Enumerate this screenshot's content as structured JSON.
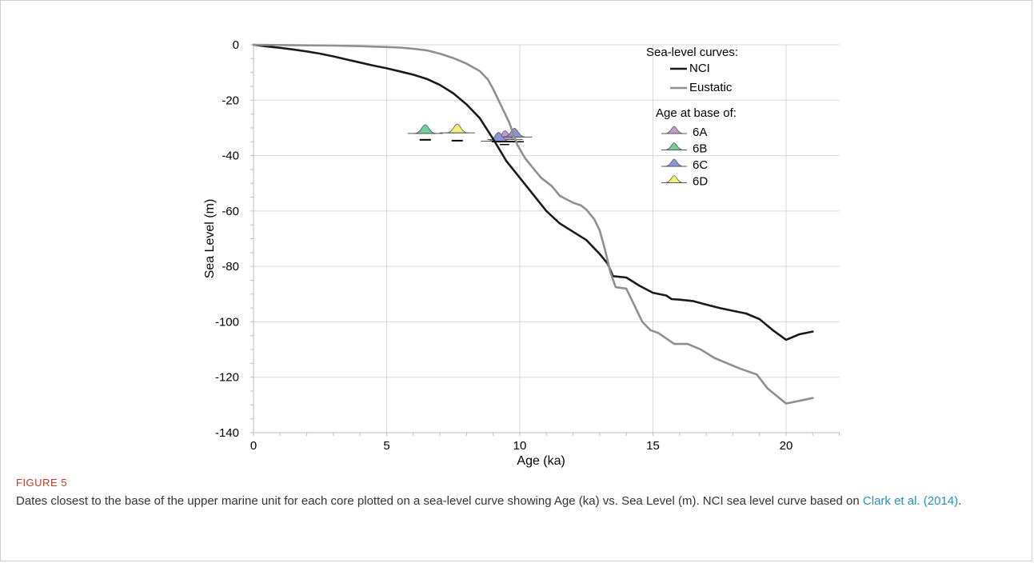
{
  "figure": {
    "label": "FIGURE 5",
    "caption_before": "Dates closest to the base of the upper marine unit for each core plotted on a sea-level curve showing Age (ka) vs. Sea Level (m). NCI sea level curve based on ",
    "caption_link": "Clark et al. (2014)",
    "caption_after": "."
  },
  "chart_data": {
    "type": "line",
    "xlabel": "Age (ka)",
    "ylabel": "Sea Level (m)",
    "xlim": [
      0,
      22
    ],
    "ylim": [
      -140,
      0
    ],
    "x_ticks": [
      0,
      5,
      10,
      15,
      20
    ],
    "y_ticks": [
      0,
      -20,
      -40,
      -60,
      -80,
      -100,
      -120,
      -140
    ],
    "grid": true,
    "legend_position": "top-right",
    "legend_title": "Sea-level curves:",
    "markers_title": "Age at base of:",
    "series": [
      {
        "name": "NCI",
        "color": "#1a1a1a",
        "x": [
          0,
          0.5,
          1,
          1.5,
          2,
          2.5,
          3,
          3.5,
          4,
          4.5,
          5,
          5.5,
          6,
          6.5,
          7,
          7.5,
          8,
          8.5,
          9,
          9.5,
          10,
          10.5,
          11,
          11.5,
          12,
          12.5,
          13,
          13.3,
          13.5,
          14,
          14.5,
          15,
          15.5,
          15.7,
          16,
          16.5,
          17,
          17.5,
          18,
          18.5,
          19,
          19.5,
          20,
          20.5,
          21
        ],
        "values": [
          0,
          -0.6,
          -1.1,
          -1.7,
          -2.4,
          -3.2,
          -4.2,
          -5.3,
          -6.4,
          -7.5,
          -8.5,
          -9.6,
          -10.8,
          -12.3,
          -14.5,
          -17.5,
          -21.5,
          -26.5,
          -34,
          -42,
          -48,
          -54,
          -60,
          -64.5,
          -67.5,
          -70.5,
          -75.5,
          -79,
          -83.5,
          -84,
          -87,
          -89.5,
          -90.5,
          -91.8,
          -92,
          -92.5,
          -93.8,
          -95,
          -96,
          -97,
          -99,
          -103,
          -106.5,
          -104.5,
          -103.5
        ]
      },
      {
        "name": "Eustatic",
        "color": "#8f8f8f",
        "x": [
          0,
          1,
          2,
          3,
          4,
          5,
          5.5,
          6,
          6.5,
          7,
          7.5,
          8,
          8.5,
          8.8,
          9,
          9.3,
          9.6,
          9.9,
          10.2,
          10.5,
          10.8,
          11.2,
          11.5,
          11.8,
          12,
          12.3,
          12.5,
          12.8,
          13,
          13.2,
          13.4,
          13.6,
          14,
          14.3,
          14.6,
          14.9,
          15.2,
          15.5,
          15.8,
          16.3,
          16.8,
          17.3,
          17.8,
          18.3,
          18.9,
          19.3,
          20,
          20.5,
          21
        ],
        "values": [
          0,
          -0.1,
          -0.2,
          -0.3,
          -0.5,
          -0.8,
          -1.0,
          -1.4,
          -2.0,
          -3.2,
          -4.8,
          -6.8,
          -9.5,
          -12.5,
          -16,
          -22,
          -28,
          -36,
          -41,
          -44.5,
          -48,
          -51,
          -54.5,
          -56,
          -57,
          -58,
          -59.5,
          -63,
          -67,
          -74,
          -82,
          -87.5,
          -88,
          -94,
          -100,
          -103,
          -104,
          -106,
          -108,
          -108,
          -110,
          -113,
          -115,
          -117,
          -119,
          -124,
          -129.5,
          -128.5,
          -127.5
        ]
      }
    ],
    "markers": [
      {
        "name": "6A",
        "color": "#c39bd3",
        "peaks": [
          {
            "x": 9.45,
            "y": -34.2
          }
        ]
      },
      {
        "name": "6B",
        "color": "#6fcf97",
        "peaks": [
          {
            "x": 6.45,
            "y": -32.0,
            "bar_y": -34.3
          }
        ]
      },
      {
        "name": "6C",
        "color": "#8e93d6",
        "peaks": [
          {
            "x": 9.8,
            "y": -33.3
          },
          {
            "x": 9.2,
            "y": -34.8
          }
        ]
      },
      {
        "name": "6D",
        "color": "#f2ef7a",
        "peaks": [
          {
            "x": 7.65,
            "y": -31.8,
            "bar_y": -34.6
          }
        ]
      }
    ]
  }
}
